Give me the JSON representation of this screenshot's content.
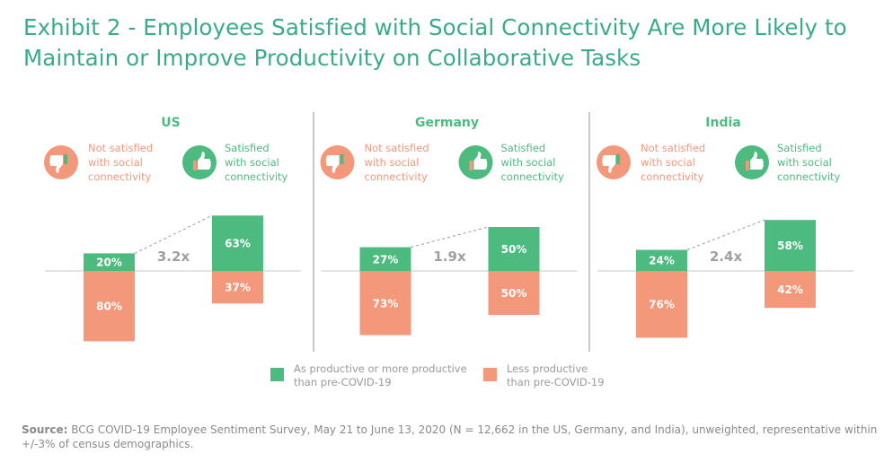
{
  "title": "Exhibit 2 - Employees Satisfied with Social Connectivity Are More Likely to Maintain or Improve Productivity on Collaborative Tasks",
  "source": {
    "label": "Source:",
    "text": " BCG COVID-19 Employee Sentiment Survey, May 21 to June 13, 2020 (N = 12,662 in the US, Germany, and India), unweighted, representative within +/-3% of census demographics."
  },
  "colors": {
    "green": "#4dbb7f",
    "salmon": "#f4987b",
    "title": "#3aab8a",
    "grey": "#a0a0a0"
  },
  "groups": {
    "not_satisfied": {
      "label_lines": [
        "Not satisfied",
        "with social",
        "connectivity"
      ],
      "icon": "thumbs-down-icon"
    },
    "satisfied": {
      "label_lines": [
        "Satisfied",
        "with social",
        "connectivity"
      ],
      "icon": "thumbs-up-icon"
    }
  },
  "legend": [
    {
      "label_lines": [
        "As productive or more productive",
        "than pre-COVID-19"
      ],
      "color": "#4dbb7f"
    },
    {
      "label_lines": [
        "Less productive",
        "than pre-COVID-19"
      ],
      "color": "#f4987b"
    }
  ],
  "chart_data": {
    "type": "bar",
    "subtype": "diverging stacked bar",
    "unit": "%",
    "panels": [
      {
        "title": "US",
        "multiplier": "3.2x",
        "categories": [
          "Not satisfied with social connectivity",
          "Satisfied with social connectivity"
        ],
        "series": [
          {
            "name": "As productive or more productive than pre-COVID-19",
            "values": [
              20,
              63
            ],
            "labels": [
              "20%",
              "63%"
            ]
          },
          {
            "name": "Less productive than pre-COVID-19",
            "values": [
              80,
              37
            ],
            "labels": [
              "80%",
              "37%"
            ]
          }
        ]
      },
      {
        "title": "Germany",
        "multiplier": "1.9x",
        "categories": [
          "Not satisfied with social connectivity",
          "Satisfied with social connectivity"
        ],
        "series": [
          {
            "name": "As productive or more productive than pre-COVID-19",
            "values": [
              27,
              50
            ],
            "labels": [
              "27%",
              "50%"
            ]
          },
          {
            "name": "Less productive than pre-COVID-19",
            "values": [
              73,
              50
            ],
            "labels": [
              "73%",
              "50%"
            ]
          }
        ]
      },
      {
        "title": "India",
        "multiplier": "2.4x",
        "categories": [
          "Not satisfied with social connectivity",
          "Satisfied with social connectivity"
        ],
        "series": [
          {
            "name": "As productive or more productive than pre-COVID-19",
            "values": [
              24,
              58
            ],
            "labels": [
              "24%",
              "58%"
            ]
          },
          {
            "name": "Less productive than pre-COVID-19",
            "values": [
              76,
              42
            ],
            "labels": [
              "76%",
              "42%"
            ]
          }
        ]
      }
    ]
  }
}
